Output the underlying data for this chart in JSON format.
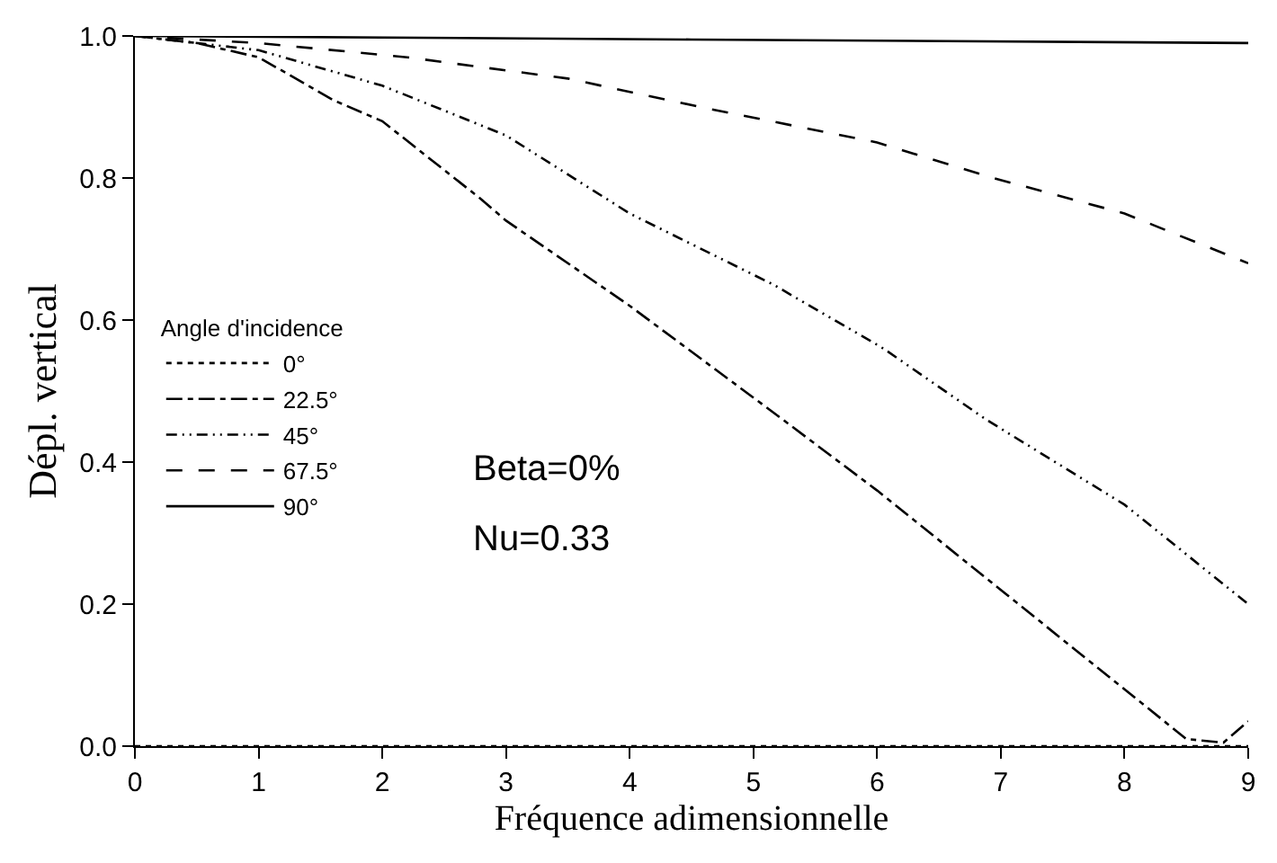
{
  "chart_data": {
    "type": "line",
    "xlabel": "Fréquence adimensionnelle",
    "ylabel": "Dépl. vertical",
    "legend_title": "Angle d'incidence",
    "legend": "left",
    "marker": "none",
    "annotations": [
      "Beta=0%",
      "Nu=0.33"
    ],
    "xlim": [
      0,
      9
    ],
    "xticks": [
      0,
      1,
      2,
      3,
      4,
      5,
      6,
      7,
      8,
      9
    ],
    "ylim": [
      0,
      1
    ],
    "yticks": [
      {
        "value": 0,
        "label": "0.0"
      },
      0.2,
      0.4,
      0.6,
      0.8,
      {
        "value": 1,
        "label": "1.0"
      }
    ],
    "series": [
      {
        "name": "0°",
        "color": "#000000",
        "line_style": "dotted",
        "x": [
          0,
          9
        ],
        "values": [
          0,
          0
        ]
      },
      {
        "name": "22.5°",
        "color": "#000000",
        "line_style": "dashdot",
        "x": [
          0,
          0.5,
          1,
          1.6,
          2,
          2.8,
          3,
          4,
          5.16,
          6,
          7,
          8,
          8.5,
          8.8,
          9
        ],
        "values": [
          1,
          0.99,
          0.97,
          0.91,
          0.88,
          0.77,
          0.74,
          0.62,
          0.47,
          0.36,
          0.22,
          0.08,
          0.01,
          0.005,
          0.035
        ]
      },
      {
        "name": "45°",
        "color": "#000000",
        "line_style": "dashdotdot",
        "x": [
          0,
          1,
          2,
          3,
          4,
          5.16,
          6.05,
          6.88,
          8,
          9
        ],
        "values": [
          1,
          0.98,
          0.93,
          0.86,
          0.75,
          0.65,
          0.56,
          0.46,
          0.34,
          0.2
        ]
      },
      {
        "name": "67.5°",
        "color": "#000000",
        "line_style": "dashed",
        "x": [
          0,
          1,
          2.2,
          3.5,
          4.57,
          6,
          6.94,
          8,
          9
        ],
        "values": [
          1,
          0.99,
          0.97,
          0.94,
          0.9,
          0.85,
          0.8,
          0.75,
          0.68
        ]
      },
      {
        "name": "90°",
        "color": "#000000",
        "line_style": "solid",
        "x": [
          0,
          4.5,
          9
        ],
        "values": [
          1,
          0.995,
          0.99
        ]
      }
    ]
  }
}
